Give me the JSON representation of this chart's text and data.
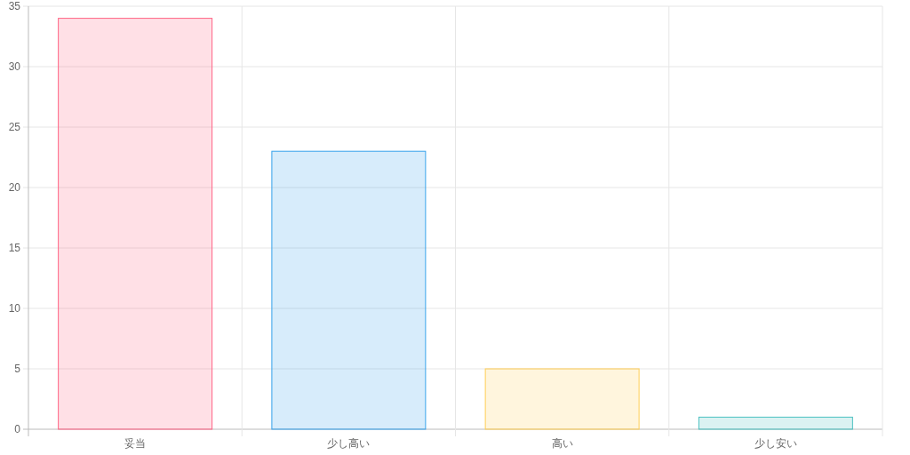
{
  "chart_data": {
    "type": "bar",
    "categories": [
      "妥当",
      "少し高い",
      "高い",
      "少し安い"
    ],
    "values": [
      34,
      23,
      5,
      1
    ],
    "colors": [
      "#ff6384",
      "#36a2eb",
      "#ffce56",
      "#4bc0c0"
    ],
    "ylim": [
      0,
      35
    ],
    "yticks": [
      0,
      5,
      10,
      15,
      20,
      25,
      30,
      35
    ],
    "grid": true
  }
}
